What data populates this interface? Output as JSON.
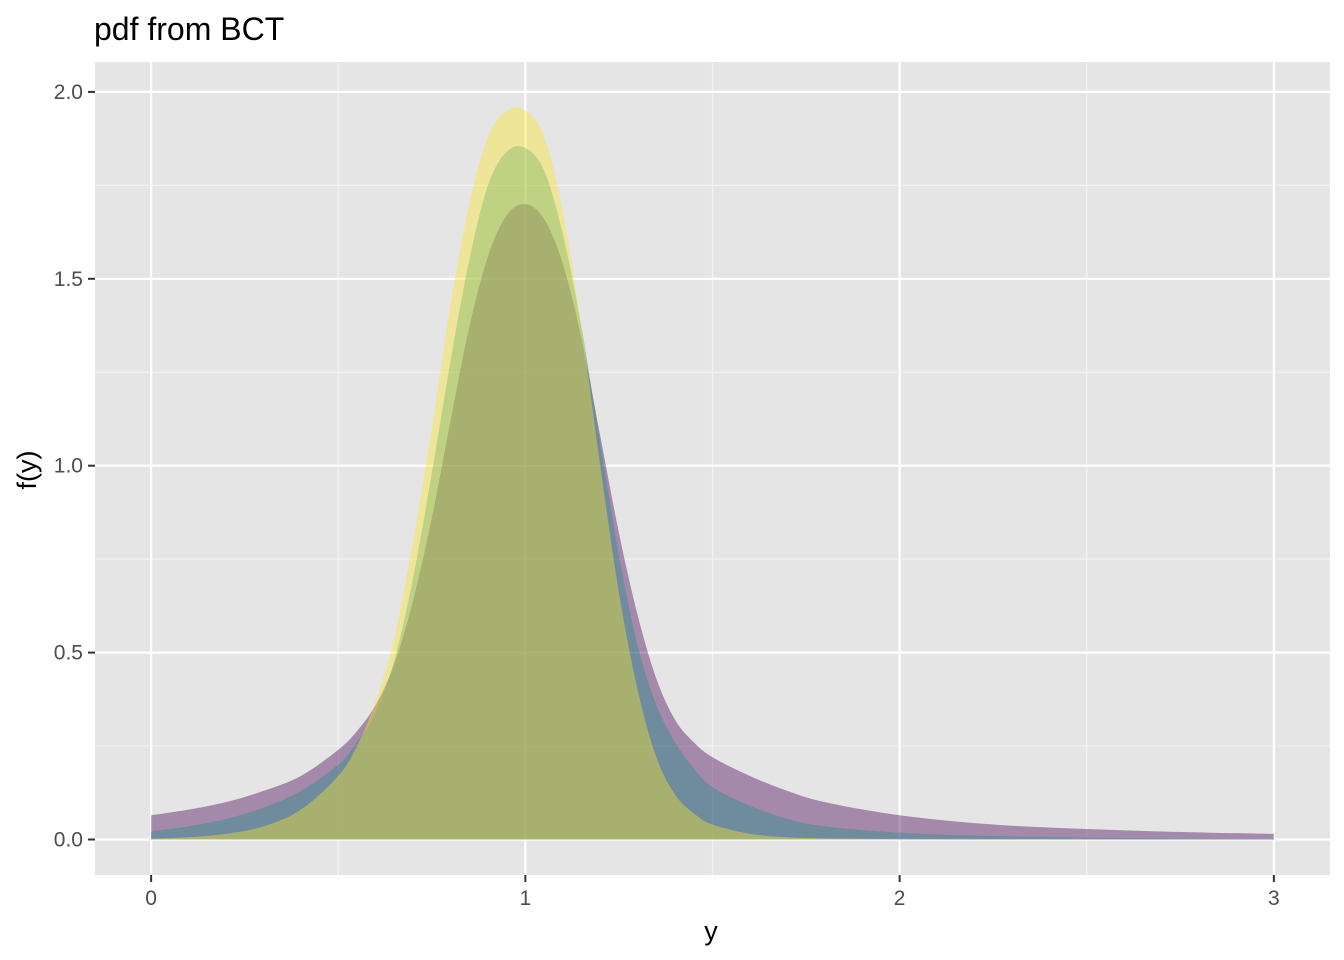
{
  "chart_data": {
    "type": "area",
    "title": "pdf from  BCT",
    "xlabel": "y",
    "ylabel": "f(y)",
    "xlim": [
      -0.15,
      3.15
    ],
    "ylim": [
      -0.095,
      2.08
    ],
    "x_ticks": [
      0,
      1,
      2,
      3
    ],
    "y_ticks": [
      0.0,
      0.5,
      1.0,
      1.5,
      2.0
    ],
    "x_tick_labels": [
      "0",
      "1",
      "2",
      "3"
    ],
    "y_tick_labels": [
      "0.0",
      "0.5",
      "1.0",
      "1.5",
      "2.0"
    ],
    "grid": true,
    "legend": "none",
    "series": [
      {
        "color": "#440154",
        "x": [
          0,
          0.1,
          0.2,
          0.3,
          0.4,
          0.5,
          0.55,
          0.6,
          0.65,
          0.7,
          0.75,
          0.8,
          0.85,
          0.9,
          0.95,
          1.0,
          1.05,
          1.1,
          1.15,
          1.2,
          1.25,
          1.3,
          1.35,
          1.4,
          1.45,
          1.5,
          1.6,
          1.7,
          1.8,
          2.0,
          2.25,
          2.5,
          2.75,
          3.0
        ],
        "values": [
          0.065,
          0.08,
          0.1,
          0.13,
          0.17,
          0.24,
          0.29,
          0.36,
          0.47,
          0.64,
          0.86,
          1.12,
          1.37,
          1.56,
          1.67,
          1.7,
          1.66,
          1.54,
          1.34,
          1.08,
          0.82,
          0.6,
          0.43,
          0.32,
          0.26,
          0.22,
          0.17,
          0.13,
          0.1,
          0.065,
          0.04,
          0.028,
          0.02,
          0.015
        ]
      },
      {
        "color": "#21908c",
        "x": [
          0,
          0.1,
          0.2,
          0.3,
          0.4,
          0.5,
          0.55,
          0.6,
          0.65,
          0.7,
          0.75,
          0.8,
          0.85,
          0.9,
          0.95,
          1.0,
          1.05,
          1.1,
          1.15,
          1.2,
          1.25,
          1.3,
          1.35,
          1.4,
          1.45,
          1.5,
          1.6,
          1.7,
          1.8,
          2.0,
          2.25,
          2.5,
          2.75,
          3.0
        ],
        "values": [
          0.022,
          0.035,
          0.055,
          0.085,
          0.13,
          0.2,
          0.26,
          0.34,
          0.48,
          0.7,
          0.98,
          1.28,
          1.55,
          1.75,
          1.84,
          1.85,
          1.79,
          1.62,
          1.37,
          1.06,
          0.76,
          0.52,
          0.36,
          0.26,
          0.19,
          0.14,
          0.09,
          0.055,
          0.035,
          0.018,
          0.009,
          0.005,
          0.003,
          0.002
        ]
      },
      {
        "color": "#fde725",
        "x": [
          0,
          0.1,
          0.2,
          0.3,
          0.4,
          0.5,
          0.55,
          0.6,
          0.65,
          0.7,
          0.75,
          0.8,
          0.85,
          0.9,
          0.95,
          1.0,
          1.05,
          1.1,
          1.15,
          1.2,
          1.25,
          1.3,
          1.35,
          1.4,
          1.45,
          1.5,
          1.6,
          1.7,
          1.8,
          2.0,
          2.25,
          2.5,
          2.75,
          3.0
        ],
        "values": [
          0.002,
          0.006,
          0.015,
          0.035,
          0.08,
          0.17,
          0.25,
          0.37,
          0.54,
          0.8,
          1.1,
          1.43,
          1.7,
          1.88,
          1.95,
          1.95,
          1.88,
          1.68,
          1.37,
          1.0,
          0.66,
          0.4,
          0.22,
          0.12,
          0.07,
          0.04,
          0.015,
          0.006,
          0.003,
          0.001,
          0.0,
          0.0,
          0.0,
          0.0
        ]
      }
    ]
  }
}
